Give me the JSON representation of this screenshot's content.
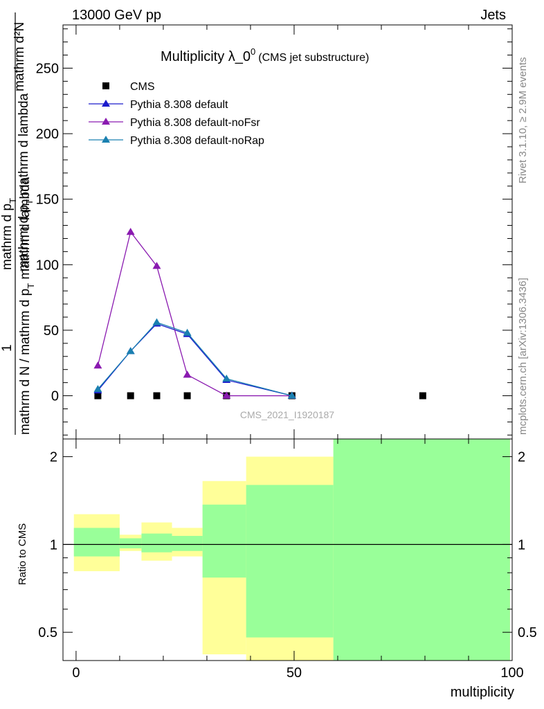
{
  "header": {
    "energy_label": "13000 GeV pp",
    "process_label": "Jets"
  },
  "side_labels": {
    "rivet": "Rivet 3.1.10, ≥ 2.9M events",
    "mcplots": "mcplots.cern.ch [arXiv:1306.3436]"
  },
  "chart_data": [
    {
      "type": "line",
      "title_main": "Multiplicity λ_0",
      "title_sup": "0",
      "title_sub": "(CMS jet substructure)",
      "watermark": "CMS_2021_I1920187",
      "ylabel": {
        "numerator": "mathrm d²N",
        "den_line1": "mathrm d p",
        "den_sub1": "T",
        "den_line1b": " mathrm d lambda",
        "den_line2a": "mathrm d p",
        "den_sub2": "T",
        "den_line2b": " mathrm d N / mathrm d p",
        "one": "1",
        "frac_den": "mathrm d N / mathrm d p",
        "frac_den_sub": "T",
        "frac_den_end": " mathrm d lambda"
      },
      "ylim": [
        -33,
        283
      ],
      "yticks": [
        0,
        50,
        100,
        150,
        200,
        250
      ],
      "xlim": [
        -3,
        100
      ],
      "legend_placement": "top-left",
      "series": [
        {
          "name": "CMS",
          "marker": "square",
          "color": "#000000",
          "x": [
            5,
            12.5,
            18.5,
            25.5,
            34.5,
            49.5,
            79.5
          ],
          "y": [
            0,
            0,
            0,
            0,
            0,
            0,
            0
          ]
        },
        {
          "name": "Pythia 8.308 default",
          "marker": "triangle",
          "color": "#1a1acc",
          "x": [
            5,
            12.5,
            18.5,
            25.5,
            34.5,
            49.5
          ],
          "y": [
            4,
            34,
            55,
            47,
            12,
            0
          ]
        },
        {
          "name": "Pythia 8.308 default-noFsr",
          "marker": "triangle",
          "color": "#8a1ab0",
          "x": [
            5,
            12.5,
            18.5,
            25.5,
            34.5,
            49.5
          ],
          "y": [
            23,
            125,
            99,
            16,
            0,
            0
          ]
        },
        {
          "name": "Pythia 8.308 default-noRap",
          "marker": "triangle",
          "color": "#1a80b0",
          "x": [
            5,
            12.5,
            18.5,
            25.5,
            34.5,
            49.5
          ],
          "y": [
            5,
            34,
            56,
            48,
            13,
            0
          ]
        }
      ]
    },
    {
      "type": "area",
      "ylabel": "Ratio to CMS",
      "xlabel": "multiplicity",
      "yscale": "log",
      "ylim": [
        0.4,
        2.3
      ],
      "yticks": [
        0.5,
        1,
        2
      ],
      "xlim": [
        -3,
        100
      ],
      "xticks": [
        0,
        50,
        100
      ],
      "band_colors": {
        "outer": "#ffff99",
        "inner": "#99ff99"
      },
      "bins": [
        {
          "x0": -0.5,
          "x1": 10,
          "outer": [
            0.81,
            1.27
          ],
          "inner": [
            0.91,
            1.14
          ]
        },
        {
          "x0": 10,
          "x1": 15,
          "outer": [
            0.95,
            1.08
          ],
          "inner": [
            0.97,
            1.05
          ]
        },
        {
          "x0": 15,
          "x1": 22,
          "outer": [
            0.88,
            1.19
          ],
          "inner": [
            0.94,
            1.09
          ]
        },
        {
          "x0": 22,
          "x1": 29,
          "outer": [
            0.91,
            1.14
          ],
          "inner": [
            0.95,
            1.07
          ]
        },
        {
          "x0": 29,
          "x1": 39,
          "outer": [
            0.42,
            1.65
          ],
          "inner": [
            0.77,
            1.37
          ]
        },
        {
          "x0": 39,
          "x1": 59,
          "outer": [
            0.4,
            2.0
          ],
          "inner": [
            0.48,
            1.6
          ]
        },
        {
          "x0": 59,
          "x1": 99.5,
          "outer": [
            0.4,
            2.3
          ],
          "inner": [
            0.4,
            2.3
          ]
        }
      ],
      "reference_line": 1
    }
  ]
}
